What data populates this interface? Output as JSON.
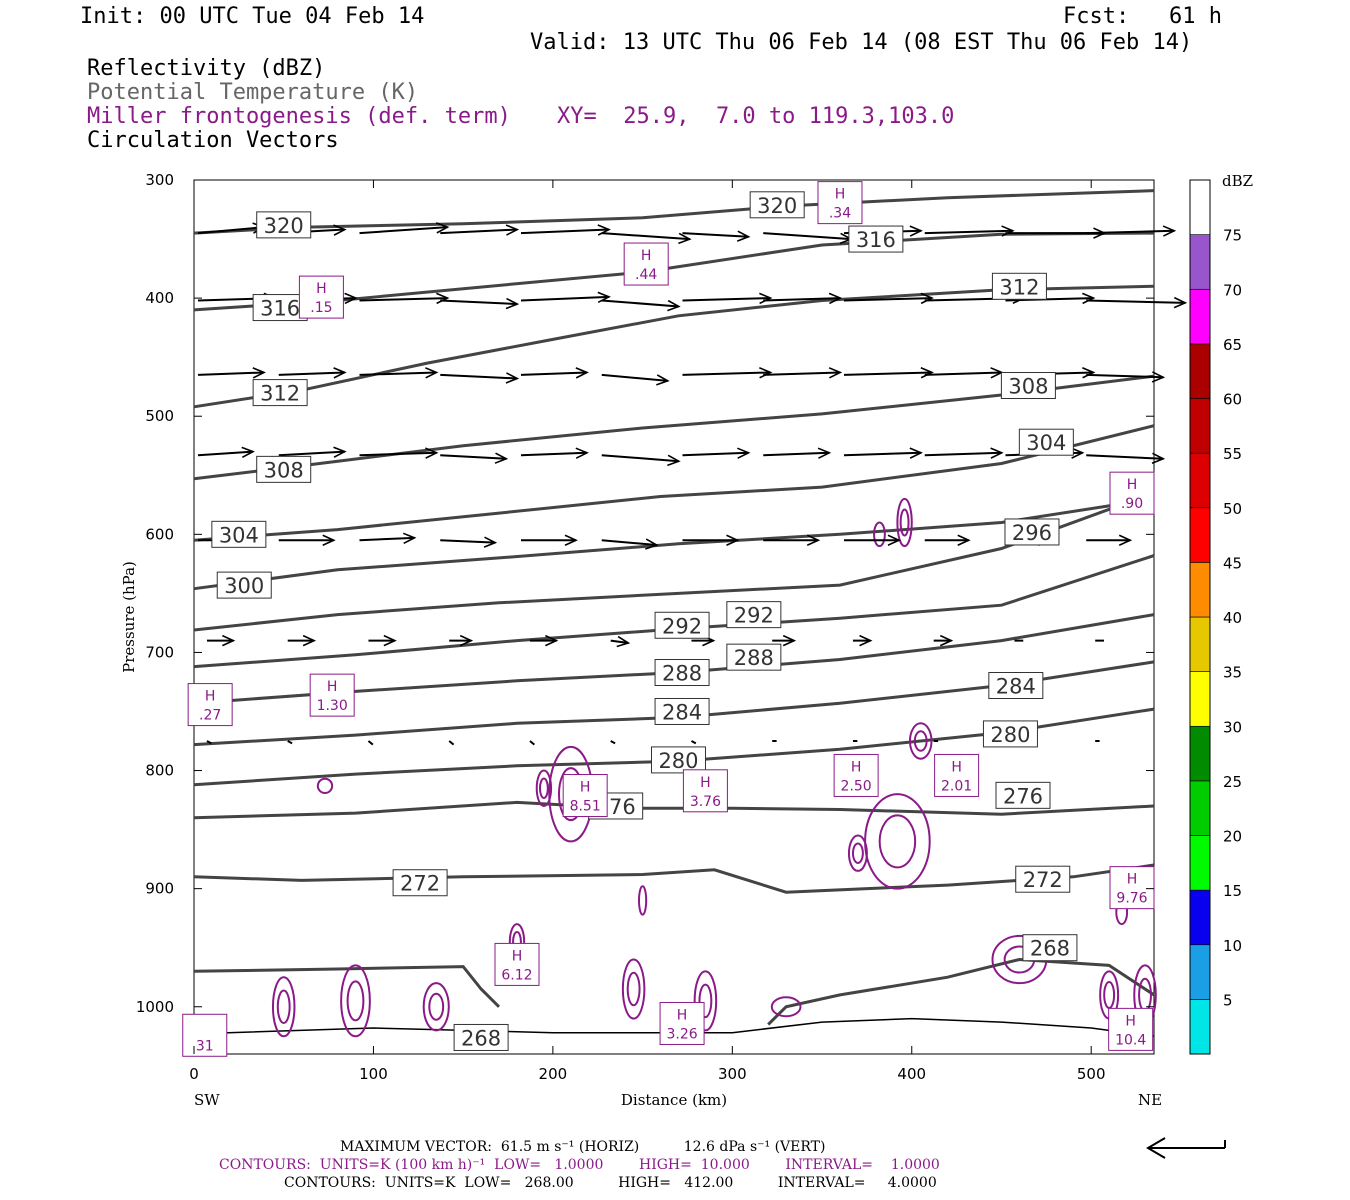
{
  "header": {
    "init": "Init: 00 UTC Tue 04 Feb 14",
    "fcst": "Fcst:   61 h",
    "valid": "Valid: 13 UTC Thu 06 Feb 14 (08 EST Thu 06 Feb 14)",
    "field1": "Reflectivity (dBZ)",
    "field2": "Potential Temperature (K)",
    "field3": "Miller frontogenesis (def. term)",
    "xy": "XY=  25.9,  7.0 to 119.3,103.0",
    "field4": "Circulation Vectors"
  },
  "colors": {
    "theta": "#444444",
    "fronto": "#8B1A89",
    "vectors": "#000000",
    "field2_text": "#666666"
  },
  "chart_data": {
    "type": "cross-section",
    "xlabel": "Distance (km)",
    "ylabel": "Pressure (hPa)",
    "xlim": [
      0,
      535
    ],
    "ylim": [
      1040,
      300
    ],
    "y_log": false,
    "x_ticks": [
      0,
      100,
      200,
      300,
      400,
      500
    ],
    "y_ticks": [
      300,
      400,
      500,
      600,
      700,
      800,
      900,
      1000
    ],
    "x_end_labels": {
      "left": "SW",
      "right": "NE"
    },
    "theta_isentropes": [
      {
        "value": 320,
        "points": [
          [
            0,
            345
          ],
          [
            60,
            340
          ],
          [
            150,
            337
          ],
          [
            250,
            332
          ],
          [
            330,
            322
          ],
          [
            420,
            315
          ],
          [
            535,
            309
          ]
        ],
        "labels": [
          [
            50,
            338
          ],
          [
            325,
            321
          ]
        ]
      },
      {
        "value": 316,
        "points": [
          [
            0,
            410
          ],
          [
            80,
            402
          ],
          [
            150,
            392
          ],
          [
            250,
            378
          ],
          [
            350,
            355
          ],
          [
            450,
            346
          ],
          [
            535,
            345
          ]
        ],
        "labels": [
          [
            48,
            408
          ],
          [
            380,
            350
          ]
        ]
      },
      {
        "value": 312,
        "points": [
          [
            0,
            492
          ],
          [
            60,
            478
          ],
          [
            130,
            455
          ],
          [
            200,
            435
          ],
          [
            270,
            415
          ],
          [
            350,
            402
          ],
          [
            450,
            393
          ],
          [
            535,
            390
          ]
        ],
        "labels": [
          [
            48,
            480
          ],
          [
            460,
            390
          ]
        ]
      },
      {
        "value": 308,
        "points": [
          [
            0,
            553
          ],
          [
            70,
            540
          ],
          [
            150,
            525
          ],
          [
            250,
            510
          ],
          [
            350,
            498
          ],
          [
            450,
            482
          ],
          [
            535,
            466
          ]
        ],
        "labels": [
          [
            50,
            545
          ],
          [
            465,
            474
          ]
        ]
      },
      {
        "value": 304,
        "points": [
          [
            0,
            605
          ],
          [
            80,
            596
          ],
          [
            170,
            582
          ],
          [
            260,
            568
          ],
          [
            350,
            560
          ],
          [
            450,
            540
          ],
          [
            535,
            508
          ]
        ],
        "labels": [
          [
            25,
            600
          ],
          [
            475,
            522
          ]
        ]
      },
      {
        "value": 300,
        "points": [
          [
            0,
            646
          ],
          [
            80,
            630
          ],
          [
            170,
            620
          ],
          [
            270,
            608
          ],
          [
            360,
            600
          ],
          [
            450,
            590
          ],
          [
            535,
            570
          ]
        ],
        "labels": [
          [
            28,
            643
          ]
        ]
      },
      {
        "value": 296,
        "points": [
          [
            0,
            681
          ],
          [
            80,
            668
          ],
          [
            170,
            658
          ],
          [
            270,
            650
          ],
          [
            360,
            643
          ],
          [
            450,
            612
          ],
          [
            535,
            565
          ]
        ],
        "labels": [
          [
            467,
            598
          ]
        ]
      },
      {
        "value": 292,
        "points": [
          [
            0,
            712
          ],
          [
            90,
            702
          ],
          [
            180,
            690
          ],
          [
            270,
            680
          ],
          [
            360,
            671
          ],
          [
            450,
            660
          ],
          [
            535,
            618
          ]
        ],
        "labels": [
          [
            272,
            677
          ],
          [
            312,
            668
          ]
        ]
      },
      {
        "value": 288,
        "points": [
          [
            0,
            743
          ],
          [
            90,
            733
          ],
          [
            180,
            724
          ],
          [
            270,
            717
          ],
          [
            360,
            706
          ],
          [
            450,
            690
          ],
          [
            535,
            668
          ]
        ],
        "labels": [
          [
            272,
            717
          ],
          [
            312,
            704
          ]
        ]
      },
      {
        "value": 284,
        "points": [
          [
            0,
            778
          ],
          [
            90,
            770
          ],
          [
            180,
            760
          ],
          [
            270,
            755
          ],
          [
            360,
            743
          ],
          [
            450,
            728
          ],
          [
            535,
            708
          ]
        ],
        "labels": [
          [
            272,
            750
          ],
          [
            458,
            728
          ]
        ]
      },
      {
        "value": 280,
        "points": [
          [
            0,
            812
          ],
          [
            90,
            803
          ],
          [
            180,
            796
          ],
          [
            270,
            792
          ],
          [
            360,
            782
          ],
          [
            450,
            768
          ],
          [
            535,
            748
          ]
        ],
        "labels": [
          [
            270,
            791
          ],
          [
            455,
            769
          ]
        ]
      },
      {
        "value": 276,
        "points": [
          [
            0,
            840
          ],
          [
            90,
            836
          ],
          [
            180,
            827
          ],
          [
            240,
            832
          ],
          [
            300,
            832
          ],
          [
            360,
            833
          ],
          [
            450,
            837
          ],
          [
            535,
            830
          ]
        ],
        "labels": [
          [
            235,
            830
          ],
          [
            462,
            821
          ]
        ]
      },
      {
        "value": 272,
        "points": [
          [
            0,
            890
          ],
          [
            60,
            893
          ],
          [
            150,
            890
          ],
          [
            250,
            888
          ],
          [
            290,
            884
          ],
          [
            330,
            903
          ],
          [
            420,
            897
          ],
          [
            490,
            890
          ],
          [
            535,
            880
          ]
        ],
        "labels": [
          [
            126,
            895
          ],
          [
            473,
            892
          ]
        ]
      },
      {
        "value": 268,
        "points": [
          [
            0,
            970
          ],
          [
            80,
            968
          ],
          [
            150,
            966
          ],
          [
            160,
            985
          ],
          [
            170,
            1000
          ]
        ],
        "labels": [
          [
            160,
            1026
          ],
          [
            477,
            950
          ]
        ]
      },
      {
        "value": 268,
        "points": [
          [
            320,
            1015
          ],
          [
            330,
            1000
          ],
          [
            360,
            990
          ],
          [
            420,
            975
          ],
          [
            460,
            960
          ],
          [
            510,
            965
          ],
          [
            535,
            990
          ]
        ],
        "labels": []
      }
    ],
    "fronto_maxima": [
      {
        "label": "H",
        "value": ".34",
        "x": 360,
        "y": 320
      },
      {
        "label": "H",
        "value": ".44",
        "x": 252,
        "y": 372
      },
      {
        "label": "H",
        "value": ".15",
        "x": 71,
        "y": 400
      },
      {
        "label": "H",
        "value": ".90",
        "x": 530,
        "y": 566
      },
      {
        "label": "H",
        "value": ".27",
        "x": 9,
        "y": 745
      },
      {
        "label": "H",
        "value": "1.30",
        "x": 77,
        "y": 737
      },
      {
        "label": "H",
        "value": "8.51",
        "x": 218,
        "y": 822
      },
      {
        "label": "H",
        "value": "3.76",
        "x": 285,
        "y": 818
      },
      {
        "label": "H",
        "value": "2.50",
        "x": 369,
        "y": 805
      },
      {
        "label": "H",
        "value": "2.01",
        "x": 425,
        "y": 805
      },
      {
        "label": "H",
        "value": "9.76",
        "x": 530,
        "y": 900
      },
      {
        "label": "H",
        "value": "6.12",
        "x": 180,
        "y": 965
      },
      {
        "label": "H",
        "value": "3.26",
        "x": 272,
        "y": 1015
      },
      {
        "label": "H",
        "value": "10.4",
        "x": 522,
        "y": 1020
      },
      {
        "label": "",
        "value": "31",
        "x": 6,
        "y": 1025
      }
    ],
    "fronto_contours": [
      {
        "cx": 210,
        "cy": 820,
        "rx": 12,
        "ry": 40
      },
      {
        "cx": 195,
        "cy": 815,
        "rx": 4,
        "ry": 15
      },
      {
        "cx": 392,
        "cy": 860,
        "rx": 18,
        "ry": 40
      },
      {
        "cx": 405,
        "cy": 775,
        "rx": 6,
        "ry": 15
      },
      {
        "cx": 396,
        "cy": 590,
        "rx": 4,
        "ry": 20
      },
      {
        "cx": 382,
        "cy": 600,
        "rx": 3,
        "ry": 10
      },
      {
        "cx": 460,
        "cy": 960,
        "rx": 15,
        "ry": 20
      },
      {
        "cx": 510,
        "cy": 990,
        "rx": 5,
        "ry": 20
      },
      {
        "cx": 530,
        "cy": 990,
        "rx": 6,
        "ry": 25
      },
      {
        "cx": 50,
        "cy": 1000,
        "rx": 6,
        "ry": 25
      },
      {
        "cx": 90,
        "cy": 995,
        "rx": 8,
        "ry": 30
      },
      {
        "cx": 135,
        "cy": 1000,
        "rx": 7,
        "ry": 20
      },
      {
        "cx": 180,
        "cy": 945,
        "rx": 4,
        "ry": 15
      },
      {
        "cx": 245,
        "cy": 985,
        "rx": 6,
        "ry": 25
      },
      {
        "cx": 285,
        "cy": 995,
        "rx": 6,
        "ry": 25
      },
      {
        "cx": 250,
        "cy": 910,
        "rx": 2,
        "ry": 12
      },
      {
        "cx": 330,
        "cy": 1000,
        "rx": 8,
        "ry": 8
      },
      {
        "cx": 370,
        "cy": 870,
        "rx": 5,
        "ry": 15
      },
      {
        "cx": 73,
        "cy": 813,
        "rx": 4,
        "ry": 6
      },
      {
        "cx": 517,
        "cy": 920,
        "rx": 3,
        "ry": 10
      }
    ],
    "surface": [
      [
        0,
        1023
      ],
      [
        100,
        1018
      ],
      [
        200,
        1022
      ],
      [
        300,
        1022
      ],
      [
        350,
        1013
      ],
      [
        400,
        1010
      ],
      [
        450,
        1013
      ],
      [
        500,
        1018
      ],
      [
        535,
        1025
      ]
    ],
    "vectors_rows": [
      {
        "p": 345,
        "x": [
          0,
          45,
          90,
          135,
          180,
          225,
          270,
          315,
          360,
          405,
          450,
          495
        ],
        "u": [
          30,
          30,
          40,
          35,
          40,
          40,
          30,
          40,
          35,
          40,
          45,
          40
        ],
        "v": [
          -5,
          -3,
          -5,
          -3,
          -3,
          5,
          3,
          5,
          -2,
          -2,
          0,
          -2
        ]
      },
      {
        "p": 402,
        "x": [
          0,
          45,
          90,
          135,
          180,
          225,
          270,
          315,
          360,
          405,
          450,
          495
        ],
        "u": [
          35,
          35,
          40,
          35,
          40,
          35,
          40,
          35,
          40,
          45,
          40,
          45
        ],
        "v": [
          -2,
          -2,
          -2,
          3,
          -3,
          5,
          -2,
          -2,
          -2,
          -2,
          -2,
          2
        ]
      },
      {
        "p": 465,
        "x": [
          0,
          45,
          90,
          135,
          180,
          225,
          270,
          315,
          360,
          405,
          450,
          495
        ],
        "u": [
          30,
          30,
          35,
          35,
          30,
          30,
          40,
          35,
          40,
          35,
          40,
          35
        ],
        "v": [
          -2,
          -2,
          -2,
          3,
          -2,
          5,
          -2,
          -2,
          -2,
          -2,
          -2,
          2
        ]
      },
      {
        "p": 533,
        "x": [
          0,
          45,
          90,
          135,
          180,
          225,
          270,
          315,
          360,
          405,
          450,
          495
        ],
        "u": [
          25,
          30,
          35,
          30,
          30,
          35,
          30,
          30,
          35,
          35,
          35,
          35
        ],
        "v": [
          -3,
          -3,
          -2,
          3,
          -2,
          5,
          -2,
          -2,
          -2,
          -2,
          -2,
          3
        ]
      },
      {
        "p": 605,
        "x": [
          0,
          45,
          90,
          135,
          180,
          225,
          270,
          315,
          360,
          405,
          450,
          495
        ],
        "u": [
          20,
          25,
          25,
          25,
          25,
          25,
          25,
          25,
          25,
          20,
          20,
          20
        ],
        "v": [
          0,
          0,
          -2,
          2,
          0,
          4,
          0,
          0,
          0,
          0,
          0,
          0
        ]
      },
      {
        "p": 690,
        "x": [
          5,
          50,
          95,
          140,
          185,
          230,
          275,
          320,
          365,
          410,
          455,
          500
        ],
        "u": [
          12,
          12,
          12,
          10,
          12,
          8,
          10,
          10,
          8,
          8,
          4,
          4
        ],
        "v": [
          0,
          0,
          0,
          0,
          0,
          2,
          0,
          0,
          0,
          0,
          0,
          0
        ]
      },
      {
        "p": 775,
        "x": [
          5,
          50,
          95,
          140,
          185,
          230,
          275,
          320,
          365,
          410,
          455,
          500
        ],
        "u": [
          2,
          2,
          2,
          2,
          2,
          2,
          2,
          2,
          2,
          2,
          2,
          2
        ],
        "v": [
          2,
          2,
          3,
          3,
          3,
          2,
          2,
          0,
          0,
          0,
          0,
          0
        ]
      }
    ],
    "colorbar": {
      "unit": "dBZ",
      "labels": [
        "5",
        "10",
        "15",
        "20",
        "25",
        "30",
        "35",
        "40",
        "45",
        "50",
        "55",
        "60",
        "65",
        "70",
        "75"
      ],
      "colors": [
        "#00e5e5",
        "#1a9ee6",
        "#0a00f0",
        "#00fa00",
        "#00cd00",
        "#008b00",
        "#ffff00",
        "#e5c800",
        "#ff8c00",
        "#ff0000",
        "#dd0000",
        "#c00000",
        "#aa0000",
        "#ff00ff",
        "#9955cc",
        "#ffffff"
      ]
    }
  },
  "footer": {
    "maxvec": "MAXIMUM VECTOR:  61.5 m s⁻¹ (HORIZ)          12.6 dPa s⁻¹ (VERT)",
    "contours1": "CONTOURS:  UNITS=K (100 km h)⁻¹  LOW=   1.0000        HIGH=  10.000        INTERVAL=    1.0000",
    "contours2": "CONTOURS:  UNITS=K  LOW=   268.00          HIGH=   412.00          INTERVAL=     4.0000"
  }
}
